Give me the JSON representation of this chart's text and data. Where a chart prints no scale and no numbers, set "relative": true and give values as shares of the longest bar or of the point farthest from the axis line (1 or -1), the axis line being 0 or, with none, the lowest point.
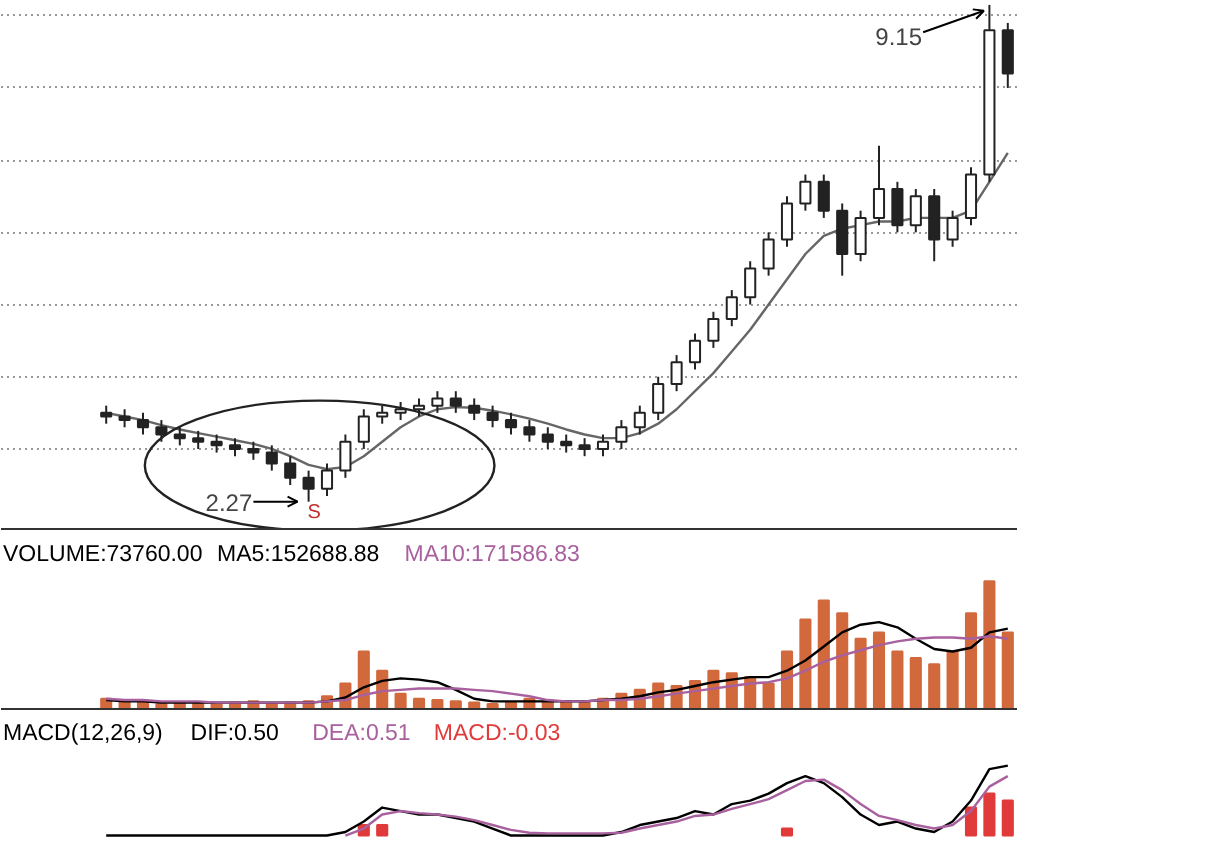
{
  "chart_data": [
    {
      "type": "candlestick",
      "categories": [
        null,
        null,
        null,
        null,
        null,
        null,
        null,
        null,
        null,
        null,
        null,
        null,
        null,
        null,
        null,
        null,
        null,
        null,
        null,
        null,
        null,
        null,
        null,
        null,
        null,
        null,
        null,
        null,
        null,
        null,
        null,
        null,
        null,
        null,
        null,
        null,
        null,
        null,
        null,
        null,
        null,
        null,
        null,
        null,
        null,
        null,
        null,
        null,
        null,
        null
      ],
      "color": "#222222",
      "ohlc": [
        [
          3.5,
          3.6,
          3.35,
          3.45
        ],
        [
          3.45,
          3.55,
          3.3,
          3.4
        ],
        [
          3.4,
          3.5,
          3.2,
          3.3
        ],
        [
          3.3,
          3.4,
          3.1,
          3.2
        ],
        [
          3.2,
          3.3,
          3.05,
          3.15
        ],
        [
          3.15,
          3.25,
          3.0,
          3.1
        ],
        [
          3.1,
          3.2,
          2.95,
          3.05
        ],
        [
          3.05,
          3.15,
          2.9,
          3.0
        ],
        [
          3.0,
          3.1,
          2.85,
          2.95
        ],
        [
          2.95,
          3.05,
          2.7,
          2.8
        ],
        [
          2.8,
          2.9,
          2.5,
          2.6
        ],
        [
          2.6,
          2.7,
          2.27,
          2.45
        ],
        [
          2.45,
          2.8,
          2.35,
          2.7
        ],
        [
          2.7,
          3.2,
          2.6,
          3.1
        ],
        [
          3.1,
          3.55,
          3.0,
          3.45
        ],
        [
          3.45,
          3.6,
          3.35,
          3.5
        ],
        [
          3.5,
          3.65,
          3.4,
          3.55
        ],
        [
          3.55,
          3.7,
          3.45,
          3.6
        ],
        [
          3.6,
          3.8,
          3.5,
          3.7
        ],
        [
          3.7,
          3.8,
          3.5,
          3.6
        ],
        [
          3.6,
          3.7,
          3.4,
          3.5
        ],
        [
          3.5,
          3.6,
          3.3,
          3.4
        ],
        [
          3.4,
          3.5,
          3.2,
          3.3
        ],
        [
          3.3,
          3.4,
          3.1,
          3.2
        ],
        [
          3.2,
          3.3,
          3.0,
          3.1
        ],
        [
          3.1,
          3.2,
          2.95,
          3.05
        ],
        [
          3.05,
          3.15,
          2.9,
          3.0
        ],
        [
          3.0,
          3.2,
          2.9,
          3.1
        ],
        [
          3.1,
          3.4,
          3.0,
          3.3
        ],
        [
          3.3,
          3.6,
          3.2,
          3.5
        ],
        [
          3.5,
          4.0,
          3.4,
          3.9
        ],
        [
          3.9,
          4.3,
          3.8,
          4.2
        ],
        [
          4.2,
          4.6,
          4.1,
          4.5
        ],
        [
          4.5,
          4.9,
          4.4,
          4.8
        ],
        [
          4.8,
          5.2,
          4.7,
          5.1
        ],
        [
          5.1,
          5.6,
          5.0,
          5.5
        ],
        [
          5.5,
          6.0,
          5.4,
          5.9
        ],
        [
          5.9,
          6.5,
          5.8,
          6.4
        ],
        [
          6.4,
          6.8,
          6.3,
          6.7
        ],
        [
          6.7,
          6.8,
          6.2,
          6.3
        ],
        [
          6.3,
          6.4,
          5.4,
          5.7
        ],
        [
          5.7,
          6.3,
          5.6,
          6.2
        ],
        [
          6.2,
          7.2,
          6.1,
          6.6
        ],
        [
          6.6,
          6.7,
          6.0,
          6.1
        ],
        [
          6.1,
          6.6,
          6.0,
          6.5
        ],
        [
          6.5,
          6.6,
          5.6,
          5.9
        ],
        [
          5.9,
          6.3,
          5.8,
          6.2
        ],
        [
          6.2,
          6.9,
          6.1,
          6.8
        ],
        [
          6.8,
          9.15,
          6.7,
          8.8
        ],
        [
          8.8,
          8.9,
          8.0,
          8.2
        ]
      ],
      "series": [
        {
          "type": "line",
          "color": "#666666",
          "values": [
            3.5,
            3.45,
            3.4,
            3.33,
            3.27,
            3.22,
            3.17,
            3.12,
            3.07,
            3.0,
            2.9,
            2.78,
            2.72,
            2.75,
            2.9,
            3.1,
            3.3,
            3.45,
            3.55,
            3.58,
            3.57,
            3.53,
            3.48,
            3.42,
            3.35,
            3.27,
            3.2,
            3.15,
            3.15,
            3.22,
            3.35,
            3.55,
            3.8,
            4.05,
            4.35,
            4.65,
            5.0,
            5.35,
            5.7,
            5.95,
            6.05,
            6.1,
            6.15,
            6.15,
            6.2,
            6.2,
            6.2,
            6.3,
            6.7,
            7.1
          ]
        }
      ],
      "yticks": [
        {
          "value": 3,
          "label": null
        },
        {
          "value": 4,
          "label": null
        },
        {
          "value": 5,
          "label": null
        },
        {
          "value": 6,
          "label": null
        },
        {
          "value": 7,
          "label": null
        },
        {
          "value": 8,
          "label": null
        },
        {
          "value": 9,
          "label": null
        }
      ],
      "grid": "y",
      "tick_labels": false,
      "annotations": [
        "2.27",
        "9.15",
        "S"
      ]
    },
    {
      "type": "bar",
      "relative": true,
      "title": "VOLUME:73760.00",
      "tick_labels": false,
      "categories": [
        null,
        null,
        null,
        null,
        null,
        null,
        null,
        null,
        null,
        null,
        null,
        null,
        null,
        null,
        null,
        null,
        null,
        null,
        null,
        null,
        null,
        null,
        null,
        null,
        null,
        null,
        null,
        null,
        null,
        null,
        null,
        null,
        null,
        null,
        null,
        null,
        null,
        null,
        null,
        null,
        null,
        null,
        null,
        null,
        null,
        null,
        null,
        null,
        null,
        null
      ],
      "series": [
        {
          "color": "#d2693c",
          "values": [
            0.08,
            0.06,
            0.05,
            0.04,
            0.05,
            0.04,
            0.04,
            0.05,
            0.06,
            0.04,
            0.05,
            0.06,
            0.1,
            0.2,
            0.45,
            0.3,
            0.12,
            0.08,
            0.07,
            0.06,
            0.05,
            0.04,
            0.05,
            0.08,
            0.07,
            0.06,
            0.05,
            0.08,
            0.12,
            0.15,
            0.2,
            0.18,
            0.22,
            0.3,
            0.28,
            0.25,
            0.2,
            0.45,
            0.7,
            0.85,
            0.75,
            0.55,
            0.6,
            0.45,
            0.4,
            0.35,
            0.45,
            0.75,
            1.0,
            0.6
          ]
        },
        {
          "name": "MA5:152688.88",
          "type": "line",
          "color": "#000000",
          "values": [
            0.07,
            0.06,
            0.06,
            0.05,
            0.05,
            0.05,
            0.05,
            0.05,
            0.05,
            0.05,
            0.05,
            0.05,
            0.06,
            0.09,
            0.17,
            0.22,
            0.24,
            0.23,
            0.21,
            0.15,
            0.08,
            0.06,
            0.06,
            0.06,
            0.06,
            0.06,
            0.06,
            0.07,
            0.08,
            0.1,
            0.13,
            0.15,
            0.18,
            0.21,
            0.23,
            0.25,
            0.25,
            0.3,
            0.38,
            0.49,
            0.6,
            0.66,
            0.68,
            0.64,
            0.55,
            0.47,
            0.45,
            0.48,
            0.6,
            0.63
          ]
        },
        {
          "name": "MA10:171586.83",
          "type": "line",
          "color": "#a8609e",
          "values": [
            0.08,
            0.07,
            0.07,
            0.06,
            0.06,
            0.06,
            0.05,
            0.05,
            0.05,
            0.05,
            0.05,
            0.05,
            0.06,
            0.07,
            0.11,
            0.14,
            0.15,
            0.16,
            0.16,
            0.16,
            0.15,
            0.14,
            0.12,
            0.1,
            0.07,
            0.06,
            0.06,
            0.07,
            0.07,
            0.08,
            0.1,
            0.12,
            0.14,
            0.16,
            0.18,
            0.2,
            0.21,
            0.24,
            0.3,
            0.37,
            0.42,
            0.46,
            0.5,
            0.53,
            0.55,
            0.56,
            0.56,
            0.55,
            0.57,
            0.55
          ]
        }
      ]
    },
    {
      "type": "line",
      "relative": true,
      "title": "MACD(12,26,9)",
      "tick_labels": false,
      "categories": [
        null,
        null,
        null,
        null,
        null,
        null,
        null,
        null,
        null,
        null,
        null,
        null,
        null,
        null,
        null,
        null,
        null,
        null,
        null,
        null,
        null,
        null,
        null,
        null,
        null,
        null,
        null,
        null,
        null,
        null,
        null,
        null,
        null,
        null,
        null,
        null,
        null,
        null,
        null,
        null,
        null,
        null,
        null,
        null,
        null,
        null,
        null,
        null,
        null,
        null
      ],
      "series": [
        {
          "name": "DIF:0.50",
          "color": "#000000",
          "values": [
            0.0,
            0.0,
            0.0,
            0.0,
            0.0,
            0.0,
            0.0,
            0.0,
            0.0,
            0.0,
            0.0,
            0.0,
            0.0,
            0.05,
            0.2,
            0.4,
            0.35,
            0.3,
            0.3,
            0.25,
            0.2,
            0.1,
            0.0,
            0.0,
            0.0,
            0.0,
            0.0,
            0.0,
            0.05,
            0.15,
            0.2,
            0.25,
            0.35,
            0.3,
            0.45,
            0.5,
            0.6,
            0.75,
            0.85,
            0.75,
            0.55,
            0.3,
            0.15,
            0.2,
            0.1,
            0.05,
            0.2,
            0.5,
            0.95,
            1.0
          ]
        },
        {
          "name": "DEA:0.51",
          "color": "#a8609e",
          "values": [
            null,
            null,
            null,
            null,
            null,
            null,
            null,
            null,
            null,
            null,
            null,
            null,
            null,
            0.0,
            0.1,
            0.3,
            0.35,
            0.32,
            0.3,
            0.27,
            0.22,
            0.15,
            0.08,
            0.04,
            0.03,
            0.03,
            0.03,
            0.03,
            0.04,
            0.1,
            0.15,
            0.2,
            0.28,
            0.3,
            0.38,
            0.45,
            0.52,
            0.65,
            0.78,
            0.8,
            0.65,
            0.45,
            0.28,
            0.22,
            0.15,
            0.1,
            0.15,
            0.35,
            0.7,
            0.85
          ]
        },
        {
          "name": "MACD:-0.03",
          "type": "bar",
          "color": "#e03a3a",
          "values": [
            null,
            null,
            null,
            null,
            null,
            null,
            null,
            null,
            null,
            null,
            null,
            null,
            null,
            null,
            0.15,
            0.15,
            null,
            null,
            null,
            null,
            null,
            null,
            null,
            null,
            null,
            null,
            null,
            null,
            null,
            null,
            null,
            null,
            null,
            null,
            null,
            null,
            null,
            0.1,
            null,
            null,
            null,
            null,
            null,
            null,
            null,
            null,
            null,
            0.4,
            0.6,
            0.5
          ]
        }
      ]
    }
  ]
}
